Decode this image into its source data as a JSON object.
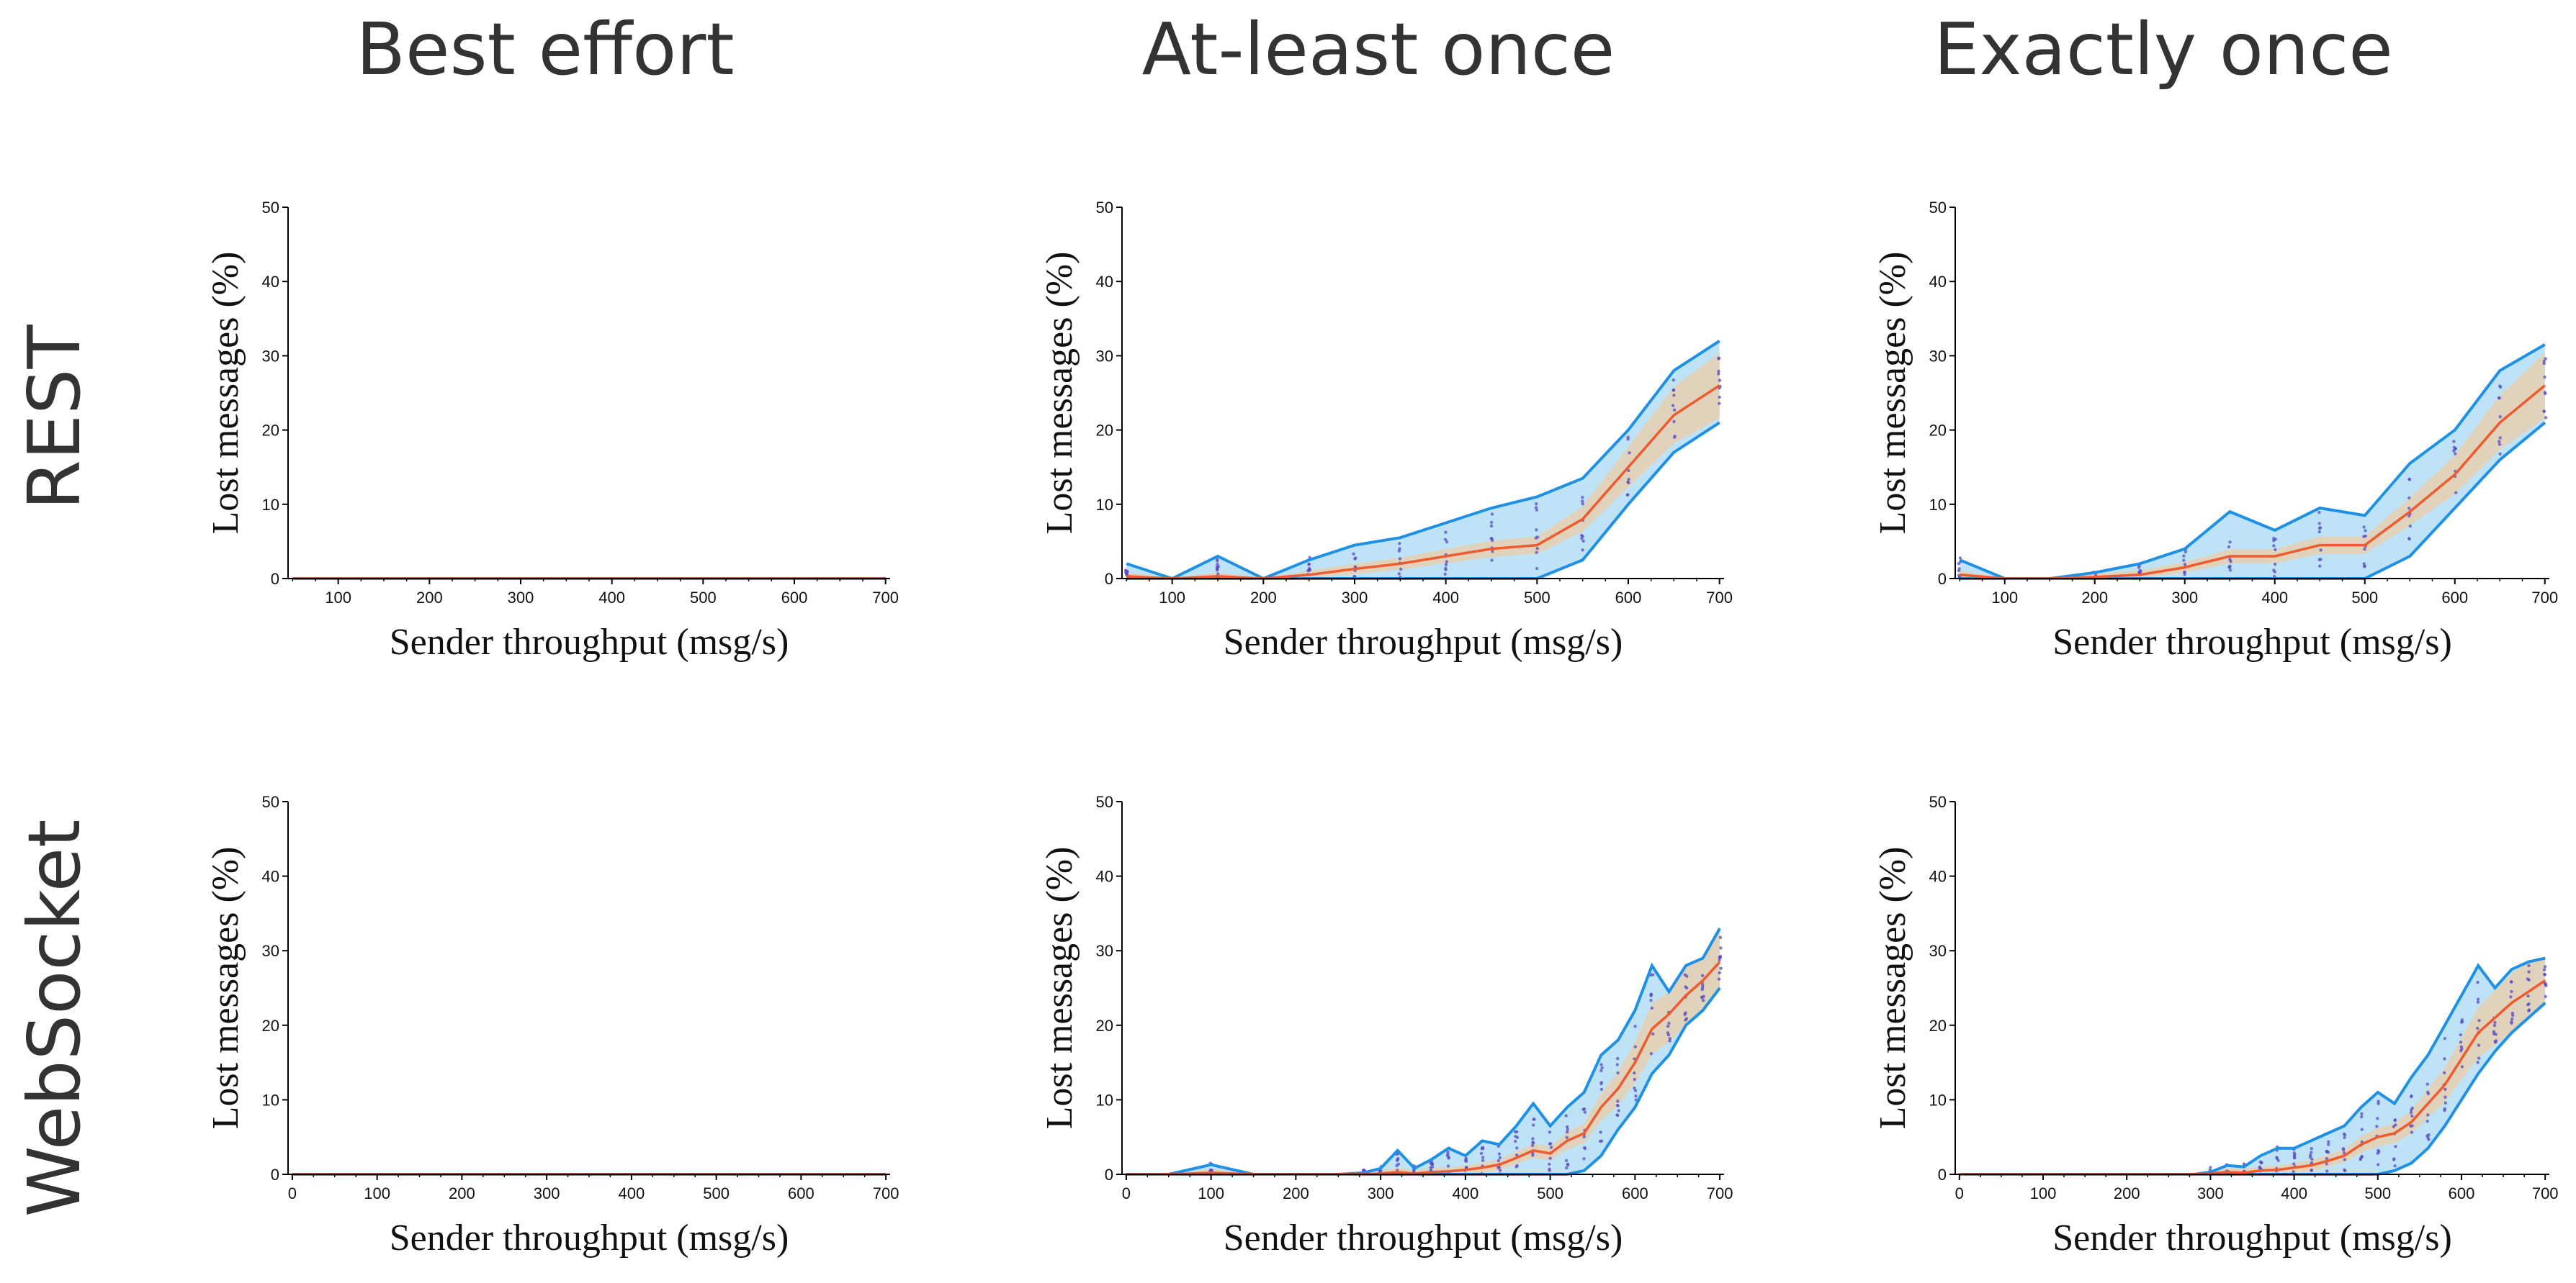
{
  "figure": {
    "column_titles": [
      "Best effort",
      "At-least once",
      "Exactly once"
    ],
    "row_titles": [
      "REST",
      "WebSocket"
    ],
    "colors": {
      "band_fill": "#bfe3f6",
      "band_edge": "#1e90e6",
      "median": "#ef5a2e",
      "inner_band": "#fbc48a",
      "points": "#5a4cc2",
      "axis": "#000000"
    }
  },
  "chart_data": [
    {
      "id": "rest-best-effort",
      "row": "REST",
      "column": "Best effort",
      "type": "line",
      "xlabel": "Sender throughput (msg/s)",
      "ylabel": "Lost messages (%)",
      "xlim": [
        45,
        705
      ],
      "ylim": [
        0,
        50
      ],
      "xticks": [
        100,
        200,
        300,
        400,
        500,
        600,
        700
      ],
      "yticks": [
        0,
        10,
        20,
        30,
        40,
        50
      ],
      "x": [
        50,
        100,
        150,
        200,
        250,
        300,
        350,
        400,
        450,
        500,
        550,
        600,
        650,
        700
      ],
      "median": [
        0,
        0,
        0,
        0,
        0,
        0,
        0,
        0,
        0,
        0,
        0,
        0,
        0,
        0
      ],
      "band_upper": [
        0,
        0,
        0,
        0,
        0,
        0,
        0,
        0,
        0,
        0,
        0,
        0,
        0,
        0
      ],
      "band_lower": [
        0,
        0,
        0,
        0,
        0,
        0,
        0,
        0,
        0,
        0,
        0,
        0,
        0,
        0
      ],
      "show_points": false
    },
    {
      "id": "rest-at-least-once",
      "row": "REST",
      "column": "At-least once",
      "type": "line",
      "xlabel": "Sender throughput (msg/s)",
      "ylabel": "Lost messages (%)",
      "xlim": [
        45,
        705
      ],
      "ylim": [
        0,
        50
      ],
      "xticks": [
        100,
        200,
        300,
        400,
        500,
        600,
        700
      ],
      "yticks": [
        0,
        10,
        20,
        30,
        40,
        50
      ],
      "x": [
        50,
        100,
        150,
        200,
        250,
        300,
        350,
        400,
        450,
        500,
        550,
        600,
        650,
        700
      ],
      "median": [
        0.3,
        0,
        0.3,
        0,
        0.5,
        1.3,
        2,
        3,
        4,
        4.5,
        8,
        15,
        22,
        26
      ],
      "band_upper": [
        2,
        0,
        3,
        0,
        2.5,
        4.5,
        5.5,
        7.5,
        9.5,
        11,
        13.5,
        20,
        28,
        32
      ],
      "band_lower": [
        0,
        0,
        0,
        0,
        0,
        0,
        0,
        0,
        0,
        0,
        2.5,
        10,
        17,
        21
      ],
      "show_points": true
    },
    {
      "id": "rest-exactly-once",
      "row": "REST",
      "column": "Exactly once",
      "type": "line",
      "xlabel": "Sender throughput (msg/s)",
      "ylabel": "Lost messages (%)",
      "xlim": [
        45,
        705
      ],
      "ylim": [
        0,
        50
      ],
      "xticks": [
        100,
        200,
        300,
        400,
        500,
        600,
        700
      ],
      "yticks": [
        0,
        10,
        20,
        30,
        40,
        50
      ],
      "x": [
        50,
        100,
        150,
        200,
        250,
        300,
        350,
        400,
        450,
        500,
        550,
        600,
        650,
        700
      ],
      "median": [
        0.5,
        0,
        0,
        0.2,
        0.5,
        1.5,
        3,
        3,
        4.5,
        4.5,
        9,
        14,
        21,
        26
      ],
      "band_upper": [
        2.5,
        0,
        0,
        0.8,
        2,
        4,
        9,
        6.5,
        9.5,
        8.5,
        15.5,
        20,
        28,
        31.5
      ],
      "band_lower": [
        0,
        0,
        0,
        0,
        0,
        0,
        0,
        0,
        0,
        0,
        3,
        9.5,
        16,
        21
      ],
      "show_points": true
    },
    {
      "id": "websocket-best-effort",
      "row": "WebSocket",
      "column": "Best effort",
      "type": "line",
      "xlabel": "Sender throughput (msg/s)",
      "ylabel": "Lost messages (%)",
      "xlim": [
        -5,
        705
      ],
      "ylim": [
        0,
        50
      ],
      "xticks": [
        0,
        100,
        200,
        300,
        400,
        500,
        600,
        700
      ],
      "yticks": [
        0,
        10,
        20,
        30,
        40,
        50
      ],
      "x": [
        0,
        100,
        200,
        300,
        400,
        500,
        600,
        700
      ],
      "median": [
        0,
        0,
        0,
        0,
        0,
        0,
        0,
        0
      ],
      "band_upper": [
        0,
        0,
        0,
        0,
        0,
        0,
        0,
        0
      ],
      "band_lower": [
        0,
        0,
        0,
        0,
        0,
        0,
        0,
        0
      ],
      "show_points": false
    },
    {
      "id": "websocket-at-least-once",
      "row": "WebSocket",
      "column": "At-least once",
      "type": "line",
      "xlabel": "Sender throughput (msg/s)",
      "ylabel": "Lost messages (%)",
      "xlim": [
        -5,
        705
      ],
      "ylim": [
        0,
        50
      ],
      "xticks": [
        0,
        100,
        200,
        300,
        400,
        500,
        600,
        700
      ],
      "yticks": [
        0,
        10,
        20,
        30,
        40,
        50
      ],
      "x": [
        0,
        50,
        100,
        150,
        200,
        250,
        280,
        300,
        320,
        340,
        360,
        380,
        400,
        420,
        440,
        460,
        480,
        500,
        520,
        540,
        560,
        580,
        600,
        620,
        640,
        660,
        680,
        700
      ],
      "median": [
        0,
        0,
        0.2,
        0,
        0,
        0,
        0,
        0.1,
        0.3,
        0.1,
        0.3,
        0.4,
        0.6,
        0.9,
        1.3,
        2.2,
        3.2,
        2.8,
        4.5,
        5.5,
        9,
        11.5,
        15,
        19.5,
        21.5,
        24,
        26,
        28.5
      ],
      "band_upper": [
        0,
        0,
        1.3,
        0,
        0,
        0,
        0.2,
        0.8,
        3.2,
        0.8,
        2,
        3.5,
        2.5,
        4.5,
        4,
        6.5,
        9.5,
        6.5,
        9,
        11,
        16,
        18,
        22,
        28,
        24.5,
        28,
        29,
        33
      ],
      "band_lower": [
        0,
        0,
        0,
        0,
        0,
        0,
        0,
        0,
        0,
        0,
        0,
        0,
        0,
        0,
        0,
        0,
        0,
        0,
        0,
        0.5,
        2.5,
        6,
        9,
        13.5,
        16,
        20,
        22,
        25
      ],
      "show_points": true
    },
    {
      "id": "websocket-exactly-once",
      "row": "WebSocket",
      "column": "Exactly once",
      "type": "line",
      "xlabel": "Sender throughput (msg/s)",
      "ylabel": "Lost messages (%)",
      "xlim": [
        -5,
        705
      ],
      "ylim": [
        0,
        50
      ],
      "xticks": [
        0,
        100,
        200,
        300,
        400,
        500,
        600,
        700
      ],
      "yticks": [
        0,
        10,
        20,
        30,
        40,
        50
      ],
      "x": [
        0,
        50,
        100,
        150,
        200,
        250,
        280,
        300,
        320,
        340,
        360,
        380,
        400,
        420,
        440,
        460,
        480,
        500,
        520,
        540,
        560,
        580,
        600,
        620,
        640,
        660,
        680,
        700
      ],
      "median": [
        0,
        0,
        0,
        0,
        0,
        0,
        0,
        0.1,
        0.3,
        0.2,
        0.5,
        0.6,
        0.9,
        1.2,
        1.8,
        2.5,
        4,
        5,
        5.5,
        7,
        9.5,
        12,
        15.5,
        19,
        21,
        23,
        24.5,
        26
      ],
      "band_upper": [
        0,
        0,
        0,
        0,
        0,
        0,
        0,
        0.3,
        1.2,
        1,
        2.5,
        3.5,
        3.5,
        4.5,
        5.5,
        6.5,
        9,
        11,
        9.5,
        13,
        16,
        20,
        24,
        28,
        25,
        27.5,
        28.5,
        29
      ],
      "band_lower": [
        0,
        0,
        0,
        0,
        0,
        0,
        0,
        0,
        0,
        0,
        0,
        0,
        0,
        0,
        0,
        0,
        0,
        0,
        0.5,
        1.5,
        3.5,
        6.5,
        10,
        13.5,
        16.5,
        19,
        21,
        23
      ],
      "show_points": true
    }
  ]
}
